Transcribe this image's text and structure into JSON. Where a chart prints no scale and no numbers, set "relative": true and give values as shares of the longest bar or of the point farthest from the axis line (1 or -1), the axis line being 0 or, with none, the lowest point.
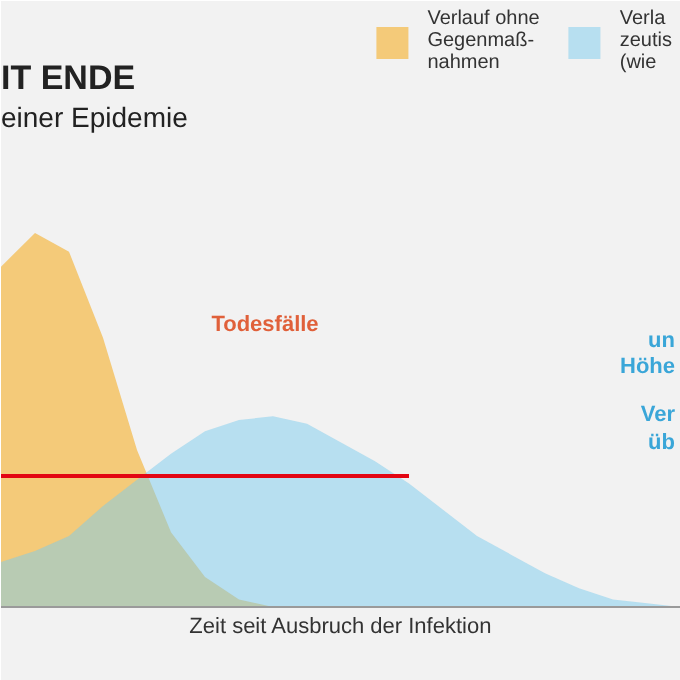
{
  "chart_data": {
    "type": "area",
    "relative": true,
    "title": "IT ENDE",
    "subtitle": "einer Epidemie",
    "xlabel": "Zeit seit Ausbruch der Infektion",
    "categories": [
      null,
      null,
      null,
      null,
      null,
      null,
      null,
      null,
      null,
      null,
      null,
      null,
      null,
      null,
      null,
      null,
      null,
      null,
      null,
      null,
      null
    ],
    "series": [
      {
        "name": "Verlauf ohne\nGegenmaß-\nnahmen",
        "color": "#f5a200",
        "values": [
          0.91,
          1.0,
          0.95,
          0.72,
          0.42,
          0.2,
          0.08,
          0.02,
          0,
          0,
          0,
          0,
          0,
          0,
          0,
          0,
          0,
          0,
          0,
          0,
          0
        ]
      },
      {
        "name": "Verla\nzeutis\n(wie",
        "color": "#7ccbee",
        "values": [
          0.12,
          0.15,
          0.19,
          0.27,
          0.34,
          0.41,
          0.47,
          0.5,
          0.51,
          0.49,
          0.44,
          0.39,
          0.33,
          0.26,
          0.19,
          0.14,
          0.09,
          0.05,
          0.02,
          0.01,
          0
        ]
      },
      {
        "type": "line",
        "color": "#e30613",
        "values": [
          0.35,
          0.35,
          0.35,
          0.35,
          0.35,
          0.35,
          0.35,
          0.35,
          0.35,
          0.35,
          0.35,
          0.35,
          0.35,
          null,
          null,
          null,
          null,
          null,
          null,
          null,
          null
        ]
      }
    ],
    "annotations": [
      "Todesfälle",
      "un",
      "Höhe",
      "Ver",
      "üb"
    ],
    "legend": "top right",
    "grid": false
  }
}
